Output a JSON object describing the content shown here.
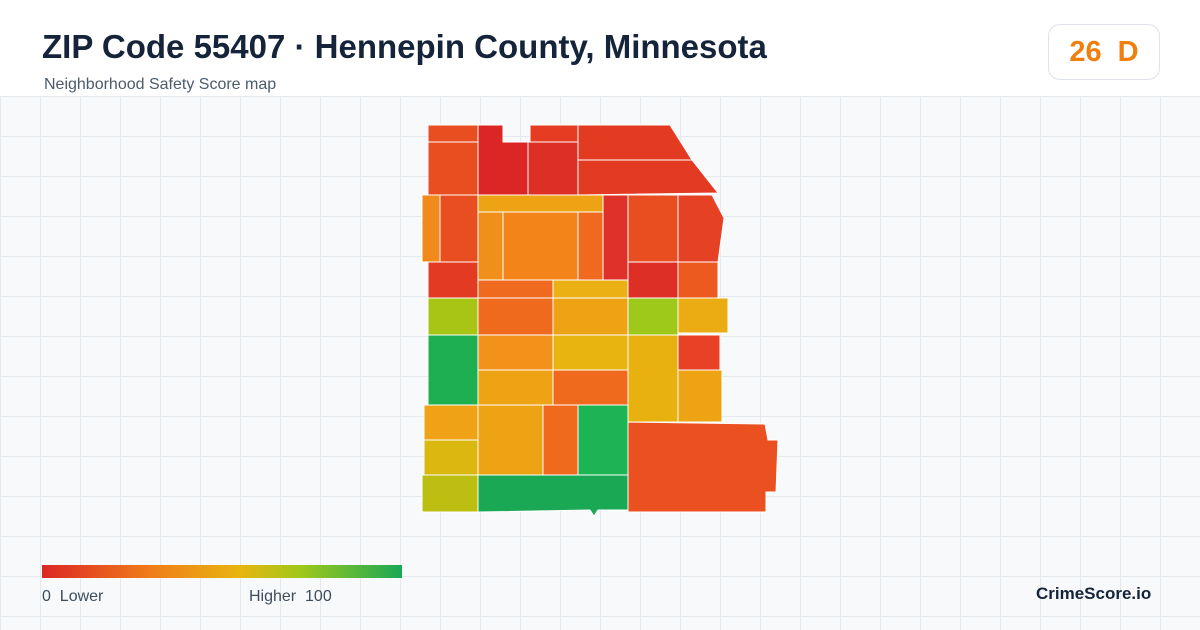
{
  "header": {
    "title": "ZIP Code 55407 · Hennepin County, Minnesota",
    "subtitle": "Neighborhood Safety Score map"
  },
  "score": {
    "value": 26,
    "grade": "D"
  },
  "legend": {
    "min": 0,
    "min_label": "Lower",
    "max_label": "Higher",
    "max": 100
  },
  "brand": "CrimeScore.io"
}
